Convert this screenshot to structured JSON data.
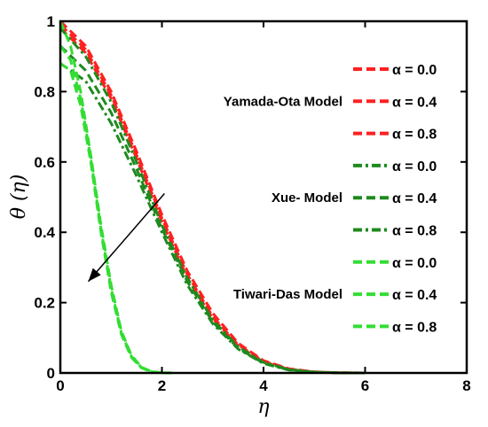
{
  "chart_data": {
    "type": "line",
    "xlabel": "η",
    "ylabel": "θ (η)",
    "xlim": [
      0,
      8
    ],
    "ylim": [
      0,
      1
    ],
    "xticks": [
      "0",
      "2",
      "4",
      "6",
      "8"
    ],
    "yticks": [
      "0",
      "0.2",
      "0.4",
      "0.6",
      "0.8",
      "1"
    ],
    "grid": false,
    "legend_position": "right",
    "groups": [
      {
        "label": "Yamada-Ota Model",
        "color": "#ff2020"
      },
      {
        "label": "Xue- Model",
        "color": "#1e8a1e"
      },
      {
        "label": "Tiwari-Das Model",
        "color": "#33dd33"
      }
    ],
    "series": [
      {
        "name": "α = 0.0",
        "group": 0,
        "color": "#ff2020",
        "dash": "dash",
        "x": [
          0,
          0.5,
          1,
          1.5,
          2,
          2.5,
          3,
          3.5,
          4,
          4.5,
          5,
          5.5,
          6
        ],
        "y": [
          1.0,
          0.93,
          0.8,
          0.63,
          0.45,
          0.29,
          0.17,
          0.085,
          0.035,
          0.012,
          0.003,
          0.0005,
          0
        ]
      },
      {
        "name": "α = 0.4",
        "group": 0,
        "color": "#ff2020",
        "dash": "dash",
        "x": [
          0,
          0.5,
          1,
          1.5,
          2,
          2.5,
          3,
          3.5,
          4,
          4.5,
          5,
          5.5,
          6
        ],
        "y": [
          0.99,
          0.92,
          0.79,
          0.62,
          0.44,
          0.28,
          0.16,
          0.08,
          0.033,
          0.011,
          0.003,
          0.0005,
          0
        ]
      },
      {
        "name": "α = 0.8",
        "group": 0,
        "color": "#ff2020",
        "dash": "dash",
        "x": [
          0,
          0.5,
          1,
          1.5,
          2,
          2.5,
          3,
          3.5,
          4,
          4.5,
          5,
          5.5,
          6
        ],
        "y": [
          0.98,
          0.91,
          0.78,
          0.61,
          0.43,
          0.27,
          0.155,
          0.077,
          0.031,
          0.01,
          0.0025,
          0.0004,
          0
        ]
      },
      {
        "name": "α = 0.0",
        "group": 1,
        "color": "#1e8a1e",
        "dash": "dashdot",
        "x": [
          0,
          0.5,
          1,
          1.5,
          2,
          2.5,
          3,
          3.5,
          4,
          4.5,
          5,
          5.5,
          6
        ],
        "y": [
          0.98,
          0.9,
          0.77,
          0.6,
          0.42,
          0.27,
          0.15,
          0.075,
          0.03,
          0.01,
          0.0025,
          0.0004,
          0
        ]
      },
      {
        "name": "α = 0.4",
        "group": 1,
        "color": "#1e8a1e",
        "dash": "dash",
        "x": [
          0,
          0.5,
          1,
          1.5,
          2,
          2.5,
          3,
          3.5,
          4,
          4.5,
          5,
          5.5,
          6
        ],
        "y": [
          0.93,
          0.86,
          0.74,
          0.58,
          0.41,
          0.26,
          0.145,
          0.07,
          0.028,
          0.009,
          0.002,
          0.0003,
          0
        ]
      },
      {
        "name": "α = 0.8",
        "group": 1,
        "color": "#1e8a1e",
        "dash": "dashdot",
        "x": [
          0,
          0.5,
          1,
          1.5,
          2,
          2.5,
          3,
          3.5,
          4,
          4.5,
          5,
          5.5,
          6
        ],
        "y": [
          0.88,
          0.83,
          0.71,
          0.56,
          0.4,
          0.25,
          0.14,
          0.068,
          0.027,
          0.008,
          0.002,
          0.0003,
          0
        ]
      },
      {
        "name": "α = 0.0",
        "group": 2,
        "color": "#33dd33",
        "dash": "dash",
        "x": [
          0,
          0.2,
          0.4,
          0.6,
          0.8,
          1.0,
          1.2,
          1.4,
          1.6,
          1.8,
          2.0,
          2.2
        ],
        "y": [
          1.0,
          0.93,
          0.8,
          0.62,
          0.42,
          0.25,
          0.12,
          0.05,
          0.016,
          0.004,
          0.0008,
          0
        ]
      },
      {
        "name": "α = 0.4",
        "group": 2,
        "color": "#33dd33",
        "dash": "dash",
        "x": [
          0,
          0.2,
          0.4,
          0.6,
          0.8,
          1.0,
          1.2,
          1.4,
          1.6,
          1.8,
          2.0,
          2.2
        ],
        "y": [
          0.93,
          0.89,
          0.78,
          0.61,
          0.41,
          0.24,
          0.115,
          0.047,
          0.015,
          0.0035,
          0.0007,
          0
        ]
      },
      {
        "name": "α = 0.8",
        "group": 2,
        "color": "#33dd33",
        "dash": "dash",
        "x": [
          0,
          0.2,
          0.4,
          0.6,
          0.8,
          1.0,
          1.2,
          1.4,
          1.6,
          1.8,
          2.0,
          2.2
        ],
        "y": [
          0.88,
          0.86,
          0.76,
          0.6,
          0.4,
          0.23,
          0.11,
          0.044,
          0.014,
          0.003,
          0.0006,
          0
        ]
      }
    ],
    "annotation_arrow": {
      "from": [
        2.05,
        0.51
      ],
      "to": [
        0.55,
        0.26
      ],
      "meaning": "increasing α"
    }
  }
}
